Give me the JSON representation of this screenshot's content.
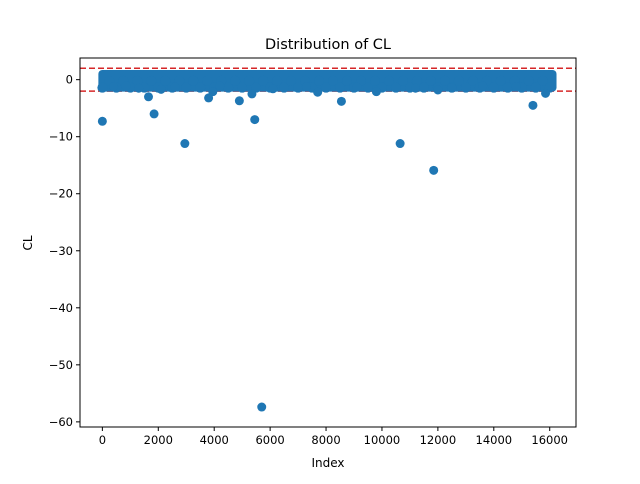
{
  "chart_data": {
    "type": "scatter",
    "title": "Distribution of CL",
    "xlabel": "Index",
    "ylabel": "CL",
    "xlim": [
      -800,
      16940
    ],
    "ylim": [
      -60.9,
      3.8
    ],
    "xticks": [
      0,
      2000,
      4000,
      6000,
      8000,
      10000,
      12000,
      14000,
      16000
    ],
    "xtick_labels": [
      "0",
      "2000",
      "4000",
      "6000",
      "8000",
      "10000",
      "12000",
      "14000",
      "16000"
    ],
    "yticks": [
      0,
      -10,
      -20,
      -30,
      -40,
      -50,
      -60
    ],
    "ytick_labels": [
      "0",
      "−10",
      "−20",
      "−30",
      "−40",
      "−50",
      "−60"
    ],
    "grid": false,
    "reference_lines": [
      {
        "y": 2,
        "color": "#d62728",
        "style": "dashed"
      },
      {
        "y": -2,
        "color": "#d62728",
        "style": "dashed"
      }
    ],
    "dense_band": {
      "x_start": 0,
      "x_end": 16100,
      "y_min": -1.4,
      "y_max": 1.0
    },
    "series": [
      {
        "color": "#1f77b4",
        "points": [
          [
            0,
            -7.3
          ],
          [
            1650,
            -3.0
          ],
          [
            1850,
            -6.0
          ],
          [
            2950,
            -11.2
          ],
          [
            3800,
            -3.2
          ],
          [
            3950,
            -2.1
          ],
          [
            4900,
            -3.7
          ],
          [
            5350,
            -2.5
          ],
          [
            5450,
            -7.0
          ],
          [
            5700,
            -57.4
          ],
          [
            7700,
            -2.2
          ],
          [
            8550,
            -3.8
          ],
          [
            9800,
            -2.1
          ],
          [
            10650,
            -11.2
          ],
          [
            11850,
            -15.9
          ],
          [
            12000,
            -1.8
          ],
          [
            15400,
            -4.5
          ],
          [
            15850,
            -2.4
          ],
          [
            400,
            -1.2
          ],
          [
            850,
            -1.1
          ],
          [
            1300,
            -1.5
          ],
          [
            2100,
            -1.7
          ],
          [
            2600,
            -1.3
          ],
          [
            4200,
            -1.1
          ],
          [
            6100,
            -1.6
          ],
          [
            7300,
            -1.2
          ],
          [
            9100,
            -1.3
          ],
          [
            11200,
            -1.5
          ],
          [
            12500,
            -1.4
          ],
          [
            13600,
            -1.1
          ],
          [
            14800,
            -1.2
          ]
        ]
      }
    ]
  }
}
